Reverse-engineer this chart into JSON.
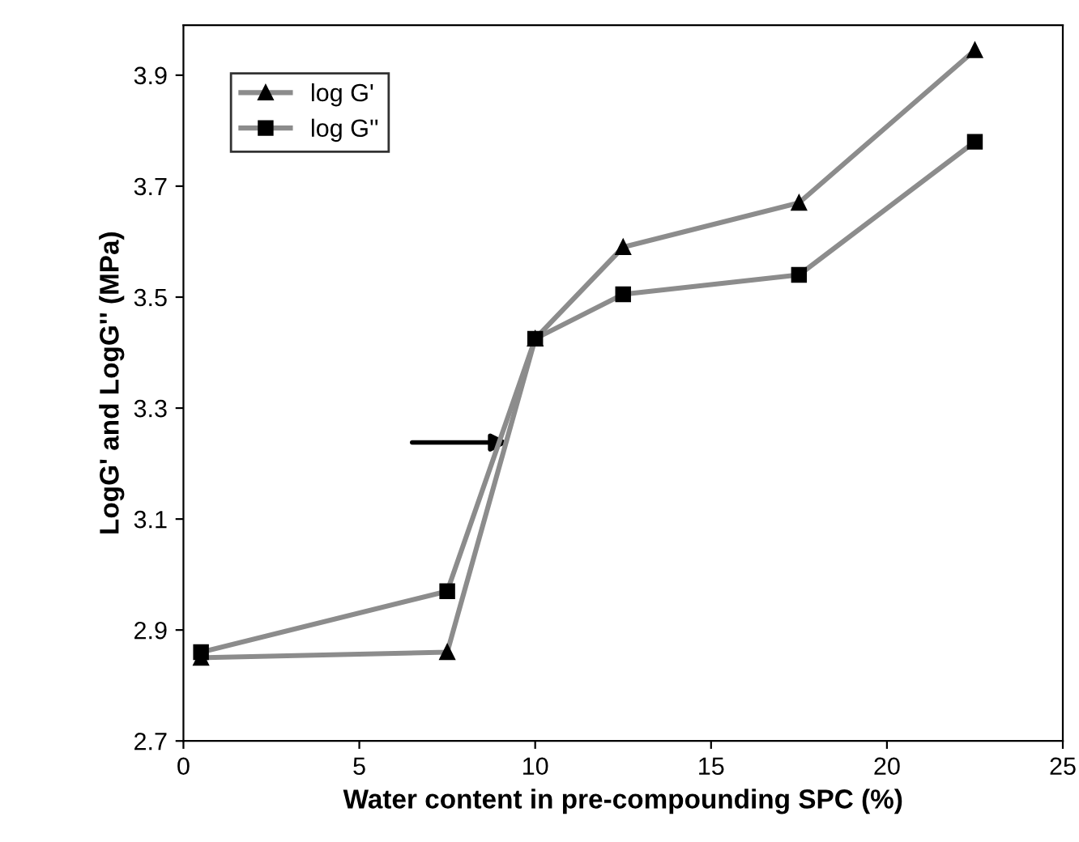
{
  "chart_data": {
    "type": "line",
    "xlabel": "Water content in pre-compounding SPC (%)",
    "ylabel": "LogG' and LogG'' (MPa)",
    "x": [
      0.5,
      7.5,
      10,
      12.5,
      17.5,
      22.5
    ],
    "series": [
      {
        "name": "log G'",
        "color": "#000000",
        "marker": "triangle",
        "values": [
          2.85,
          2.86,
          3.425,
          3.59,
          3.67,
          3.945
        ]
      },
      {
        "name": "log G''",
        "color": "#000000",
        "marker": "square",
        "values": [
          2.86,
          2.97,
          3.425,
          3.505,
          3.54,
          3.78
        ]
      }
    ],
    "xlim": [
      0,
      25
    ],
    "xticks": [
      0,
      5,
      10,
      15,
      20,
      25
    ],
    "ylim": [
      2.7,
      3.99
    ],
    "yticks": [
      2.7,
      2.9,
      3.1,
      3.3,
      3.5,
      3.7,
      3.9
    ],
    "grid": false,
    "legend": "top left",
    "line_style": "solid"
  }
}
